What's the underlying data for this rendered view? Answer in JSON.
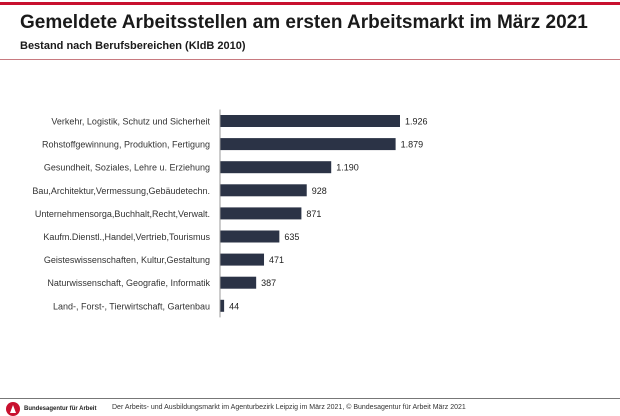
{
  "header": {
    "title": "Gemeldete Arbeitsstellen am ersten Arbeitsmarkt im März 2021",
    "subtitle": "Bestand nach Berufsbereichen (KldB 2010)"
  },
  "chart_data": {
    "type": "bar",
    "orientation": "horizontal",
    "categories": [
      "Verkehr, Logistik, Schutz und Sicherheit",
      "Rohstoffgewinnung, Produktion, Fertigung",
      "Gesundheit, Soziales, Lehre u. Erziehung",
      "Bau,Architektur,Vermessung,Gebäudetechn.",
      "Unternehmensorga,Buchhalt,Recht,Verwalt.",
      "Kaufm.Dienstl.,Handel,Vertrieb,Tourismus",
      "Geisteswissenschaften, Kultur,Gestaltung",
      "Naturwissenschaft, Geografie, Informatik",
      "Land-, Forst-, Tierwirtschaft, Gartenbau"
    ],
    "values": [
      1926,
      1879,
      1190,
      928,
      871,
      635,
      471,
      387,
      44
    ],
    "data_labels": [
      "1.926",
      "1.879",
      "1.190",
      "928",
      "871",
      "635",
      "471",
      "387",
      "44"
    ],
    "xlim": [
      0,
      1926
    ],
    "grid": false,
    "bar_color": "#2b3346"
  },
  "footer": {
    "logo_text": "Bundesagentur für Arbeit",
    "text": "Der Arbeits- und Ausbildungsmarkt im Agenturbezirk Leipzig im März 2021, © Bundesagentur für Arbeit März 2021"
  },
  "colors": {
    "accent": "#c8102e"
  }
}
